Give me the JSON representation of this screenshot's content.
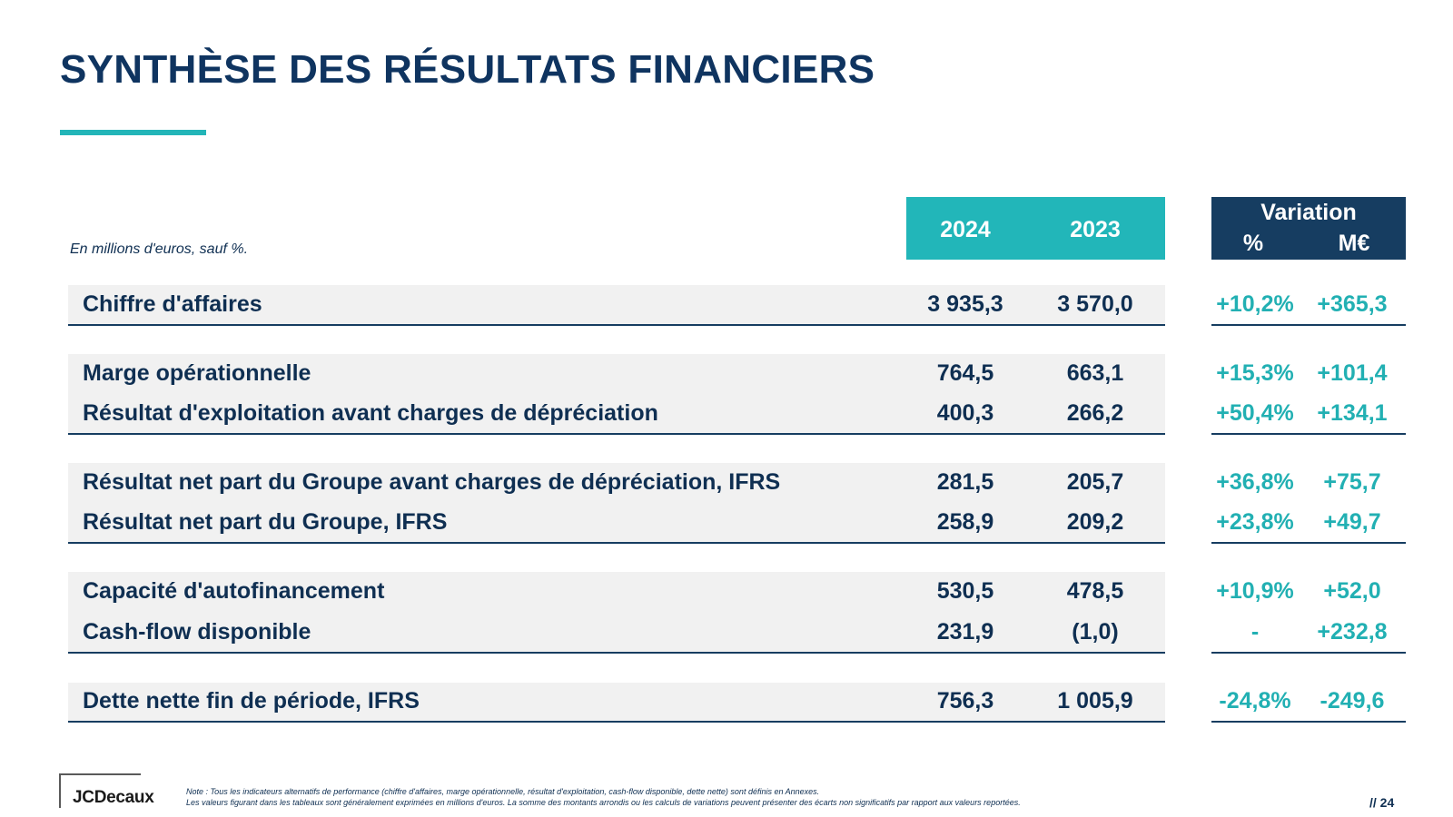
{
  "title": "SYNTHÈSE DES RÉSULTATS FINANCIERS",
  "unit_note": "En millions d'euros, sauf %.",
  "header": {
    "year_2024": "2024",
    "year_2023": "2023",
    "variation": "Variation",
    "pct": "%",
    "meur": "M€"
  },
  "rows": [
    {
      "label": "Chiffre d'affaires",
      "v2024": "3 935,3",
      "v2023": "3 570,0",
      "var_pct": "+10,2%",
      "var_meur": "+365,3"
    },
    {
      "label": "Marge opérationnelle",
      "v2024": "764,5",
      "v2023": "663,1",
      "var_pct": "+15,3%",
      "var_meur": "+101,4"
    },
    {
      "label": "Résultat d'exploitation avant charges de dépréciation",
      "v2024": "400,3",
      "v2023": "266,2",
      "var_pct": "+50,4%",
      "var_meur": "+134,1"
    },
    {
      "label": "Résultat net part du Groupe avant charges de dépréciation, IFRS",
      "v2024": "281,5",
      "v2023": "205,7",
      "var_pct": "+36,8%",
      "var_meur": "+75,7"
    },
    {
      "label": "Résultat net part du Groupe, IFRS",
      "v2024": "258,9",
      "v2023": "209,2",
      "var_pct": "+23,8%",
      "var_meur": "+49,7"
    },
    {
      "label": "Capacité d'autofinancement",
      "v2024": "530,5",
      "v2023": "478,5",
      "var_pct": "+10,9%",
      "var_meur": "+52,0"
    },
    {
      "label": "Cash-flow disponible",
      "v2024": "231,9",
      "v2023": "(1,0)",
      "var_pct": "-",
      "var_meur": "+232,8"
    },
    {
      "label": "Dette nette fin de période, IFRS",
      "v2024": "756,3",
      "v2023": "1 005,9",
      "var_pct": "-24,8%",
      "var_meur": "-249,6"
    }
  ],
  "footer": {
    "logo": "JCDecaux",
    "note_line1": "Note : Tous les indicateurs alternatifs de performance (chiffre d'affaires, marge opérationnelle, résultat d'exploitation, cash-flow disponible, dette nette) sont définis en Annexes.",
    "note_line2": "Les valeurs figurant dans les tableaux sont généralement exprimées en millions d'euros. La somme des montants arrondis ou les calculs de variations peuvent présenter des écarts non significatifs par rapport aux valeurs reportées.",
    "page": "// 24"
  },
  "colors": {
    "navy": "#0f3460",
    "teal": "#22b6b9",
    "dark_header": "#163d61",
    "row_bg": "#f1f1f1"
  }
}
